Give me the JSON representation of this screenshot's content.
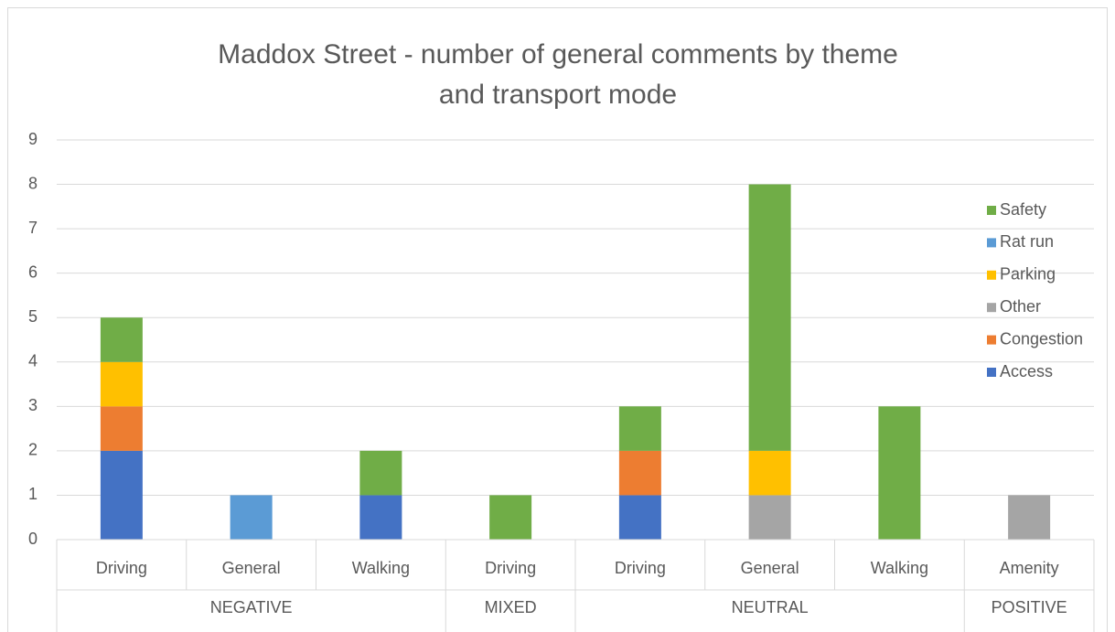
{
  "chart_data": {
    "type": "stacked_bar",
    "title": "Maddox Street - number of general comments by theme and transport mode",
    "categories": [
      "Driving",
      "General",
      "Walking",
      "Driving",
      "Driving",
      "General",
      "Walking",
      "Amenity"
    ],
    "groups": [
      {
        "name": "NEGATIVE",
        "span": 3
      },
      {
        "name": "MIXED",
        "span": 1
      },
      {
        "name": "NEUTRAL",
        "span": 3
      },
      {
        "name": "POSITIVE",
        "span": 1
      }
    ],
    "series": [
      {
        "name": "Access",
        "color": "#4472c4",
        "values": [
          2,
          0,
          1,
          0,
          1,
          0,
          0,
          0
        ]
      },
      {
        "name": "Congestion",
        "color": "#ed7d31",
        "values": [
          1,
          0,
          0,
          0,
          1,
          0,
          0,
          0
        ]
      },
      {
        "name": "Other",
        "color": "#a5a5a5",
        "values": [
          0,
          0,
          0,
          0,
          0,
          1,
          0,
          1
        ]
      },
      {
        "name": "Parking",
        "color": "#ffc000",
        "values": [
          1,
          0,
          0,
          0,
          0,
          1,
          0,
          0
        ]
      },
      {
        "name": "Rat run",
        "color": "#5b9bd5",
        "values": [
          0,
          1,
          0,
          0,
          0,
          0,
          0,
          0
        ]
      },
      {
        "name": "Safety",
        "color": "#70ad47",
        "values": [
          1,
          0,
          1,
          1,
          1,
          6,
          3,
          0
        ]
      }
    ],
    "ylim": [
      0,
      9
    ],
    "yticks": [
      0,
      1,
      2,
      3,
      4,
      5,
      6,
      7,
      8,
      9
    ],
    "grid": true,
    "legend": "right"
  }
}
